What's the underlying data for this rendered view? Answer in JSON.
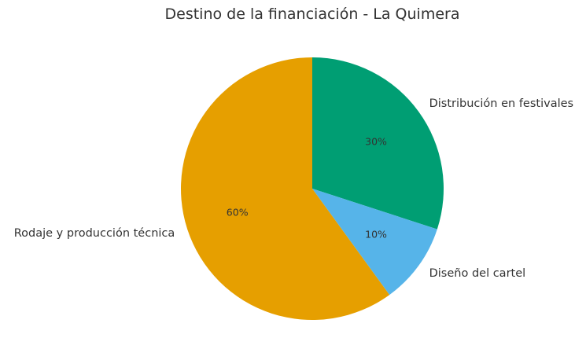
{
  "chart_data": {
    "type": "pie",
    "title": "Destino de la financiación - La Quimera",
    "slices": [
      {
        "label": "Distribución en festivales",
        "value": 30,
        "pct_label": "30%",
        "color": "#009E73"
      },
      {
        "label": "Diseño del cartel",
        "value": 10,
        "pct_label": "10%",
        "color": "#56B4E9"
      },
      {
        "label": "Rodaje y producción técnica",
        "value": 60,
        "pct_label": "60%",
        "color": "#E69F00"
      }
    ],
    "start_angle": "top",
    "direction": "clockwise",
    "legend": "none"
  }
}
